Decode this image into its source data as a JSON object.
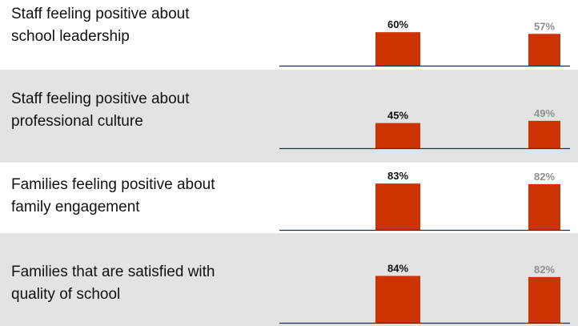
{
  "chart_data": {
    "type": "bar",
    "categories": [
      "Staff feeling positive about school leadership",
      "Staff feeling positive about professional culture",
      "Families feeling positive about family engagement",
      "Families that are satisfied with quality of school"
    ],
    "label_lines": [
      [
        "Staff feeling positive about",
        "school leadership"
      ],
      [
        "Staff feeling positive about",
        "professional culture"
      ],
      [
        "Families feeling positive about",
        "family engagement"
      ],
      [
        "Families that are satisfied with",
        "quality of school"
      ]
    ],
    "series": [
      {
        "values": [
          60,
          45,
          83,
          84
        ],
        "labels": [
          "60%",
          "45%",
          "83%",
          "84%"
        ]
      },
      {
        "values": [
          57,
          49,
          82,
          82
        ],
        "labels": [
          "57%",
          "49%",
          "82%",
          "82%"
        ]
      }
    ],
    "ylim": [
      0,
      100
    ],
    "shaded_rows": [
      false,
      true,
      false,
      true
    ],
    "colors": {
      "bar": "#cc3300",
      "primary_label": "#111111",
      "secondary_label": "#8f8f8f",
      "shade": "#e3e3e3",
      "baseline": "#1f2f4f"
    }
  }
}
